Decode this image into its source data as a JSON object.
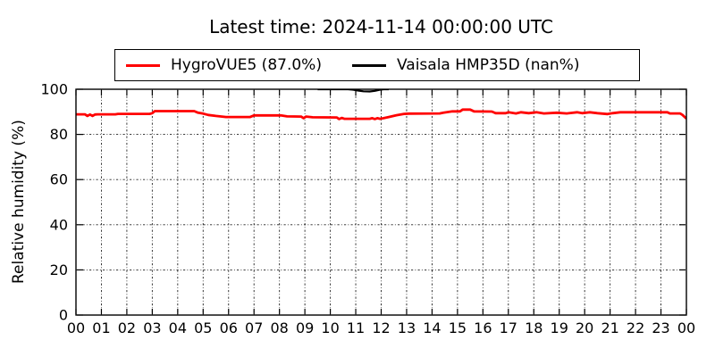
{
  "chart_data": {
    "type": "line",
    "title": "Latest time: 2024-11-14 00:00:00 UTC",
    "ylabel": "Relative humidity (%)",
    "xlabel": "",
    "xlim": [
      0,
      24
    ],
    "ylim": [
      0,
      100
    ],
    "xticks": [
      0,
      1,
      2,
      3,
      4,
      5,
      6,
      7,
      8,
      9,
      10,
      11,
      12,
      13,
      14,
      15,
      16,
      17,
      18,
      19,
      20,
      21,
      22,
      23,
      24
    ],
    "xticklabels": [
      "00",
      "01",
      "02",
      "03",
      "04",
      "05",
      "06",
      "07",
      "08",
      "09",
      "10",
      "11",
      "12",
      "13",
      "14",
      "15",
      "16",
      "17",
      "18",
      "19",
      "20",
      "21",
      "22",
      "23",
      "00"
    ],
    "yticks": [
      0,
      20,
      40,
      60,
      80,
      100
    ],
    "yticklabels": [
      "0",
      "20",
      "40",
      "60",
      "80",
      "100"
    ],
    "grid": true,
    "legend_position": "top-center-above-axes",
    "axis_color": "#000000",
    "grid_color": "#222222",
    "series": [
      {
        "name": "HygroVUE5 (87.0%)",
        "latest_value": "87.0%",
        "color": "#ff0000",
        "linewidth": 2.8,
        "points": [
          [
            0.0,
            88.9
          ],
          [
            0.35,
            88.9
          ],
          [
            0.45,
            88.2
          ],
          [
            0.55,
            88.8
          ],
          [
            0.65,
            88.2
          ],
          [
            0.75,
            88.8
          ],
          [
            0.85,
            88.9
          ],
          [
            1.55,
            88.9
          ],
          [
            1.65,
            89.1
          ],
          [
            2.9,
            89.1
          ],
          [
            3.0,
            89.4
          ],
          [
            3.1,
            90.3
          ],
          [
            4.65,
            90.3
          ],
          [
            4.8,
            89.6
          ],
          [
            5.0,
            89.2
          ],
          [
            5.2,
            88.6
          ],
          [
            5.5,
            88.2
          ],
          [
            5.9,
            87.7
          ],
          [
            6.85,
            87.7
          ],
          [
            7.0,
            88.4
          ],
          [
            8.05,
            88.4
          ],
          [
            8.3,
            88.0
          ],
          [
            8.85,
            87.9
          ],
          [
            8.95,
            87.2
          ],
          [
            9.05,
            87.9
          ],
          [
            9.3,
            87.6
          ],
          [
            10.25,
            87.5
          ],
          [
            10.35,
            86.8
          ],
          [
            10.45,
            87.3
          ],
          [
            10.55,
            86.9
          ],
          [
            11.55,
            86.9
          ],
          [
            11.65,
            87.2
          ],
          [
            11.75,
            86.8
          ],
          [
            11.85,
            87.2
          ],
          [
            11.95,
            86.9
          ],
          [
            12.1,
            87.2
          ],
          [
            12.3,
            87.7
          ],
          [
            12.6,
            88.5
          ],
          [
            12.9,
            89.1
          ],
          [
            13.1,
            89.2
          ],
          [
            14.3,
            89.3
          ],
          [
            14.45,
            89.6
          ],
          [
            14.8,
            90.2
          ],
          [
            15.1,
            90.2
          ],
          [
            15.2,
            91.0
          ],
          [
            15.5,
            91.0
          ],
          [
            15.65,
            90.2
          ],
          [
            16.35,
            90.1
          ],
          [
            16.5,
            89.4
          ],
          [
            16.9,
            89.4
          ],
          [
            17.0,
            89.8
          ],
          [
            17.3,
            89.3
          ],
          [
            17.5,
            89.8
          ],
          [
            17.8,
            89.4
          ],
          [
            18.1,
            89.8
          ],
          [
            18.4,
            89.3
          ],
          [
            18.9,
            89.6
          ],
          [
            19.3,
            89.3
          ],
          [
            19.7,
            89.8
          ],
          [
            19.9,
            89.4
          ],
          [
            20.2,
            89.8
          ],
          [
            20.5,
            89.4
          ],
          [
            20.9,
            89.0
          ],
          [
            21.1,
            89.4
          ],
          [
            21.4,
            89.8
          ],
          [
            23.25,
            89.8
          ],
          [
            23.35,
            89.3
          ],
          [
            23.75,
            89.3
          ],
          [
            23.85,
            88.6
          ],
          [
            24.0,
            87.0
          ]
        ]
      },
      {
        "name": "Vaisala HMP35D (nan%)",
        "latest_value": "nan%",
        "color": "#000000",
        "linewidth": 2.2,
        "visible_segment_hours": [
          9.5,
          12.3
        ],
        "points": [
          [
            9.5,
            100
          ],
          [
            10.7,
            100
          ],
          [
            10.9,
            99.8
          ],
          [
            11.1,
            99.4
          ],
          [
            11.3,
            99.1
          ],
          [
            11.55,
            99.0
          ],
          [
            11.75,
            99.3
          ],
          [
            11.95,
            99.8
          ],
          [
            12.1,
            100
          ],
          [
            12.3,
            100
          ]
        ]
      }
    ]
  }
}
